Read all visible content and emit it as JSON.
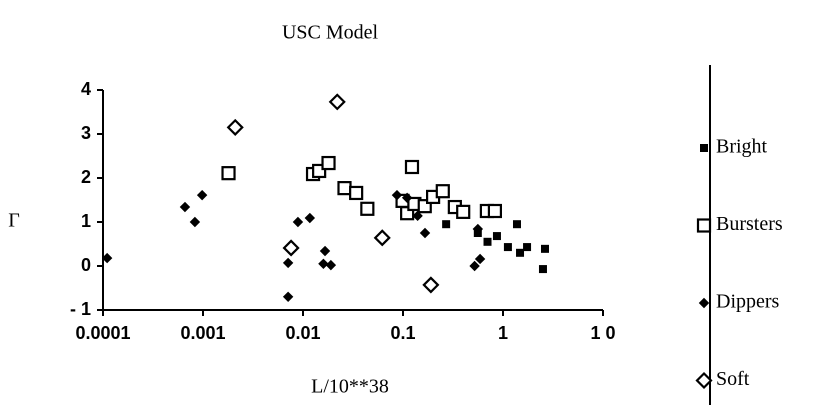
{
  "chart_data": {
    "type": "scatter",
    "title": "USC Model",
    "x_label": "L/10**38",
    "y_label": "Γ",
    "log_x": true,
    "xlim": [
      0.0001,
      10
    ],
    "ylim": [
      -1,
      4
    ],
    "xticks": [
      0.0001,
      0.001,
      0.01,
      0.1,
      1,
      {
        "value": 10,
        "label": "1 0"
      }
    ],
    "yticks": [
      {
        "value": -1,
        "label": "- 1"
      },
      0,
      1,
      2,
      3,
      4
    ],
    "series": [
      {
        "name": "Bright",
        "marker": "filled-square",
        "color": "#000000",
        "x": [
          0.27,
          0.56,
          0.7,
          0.87,
          1.12,
          1.38,
          1.48,
          1.74,
          2.63,
          2.51
        ],
        "values": [
          0.95,
          0.75,
          0.55,
          0.68,
          0.43,
          0.95,
          0.3,
          0.43,
          0.39,
          -0.07
        ]
      },
      {
        "name": "Bursters",
        "marker": "open-square",
        "color": "#000000",
        "x": [
          0.0018,
          0.0126,
          0.0145,
          0.018,
          0.026,
          0.034,
          0.044,
          0.123,
          0.099,
          0.11,
          0.13,
          0.165,
          0.2,
          0.25,
          0.33,
          0.4,
          0.69,
          0.83
        ],
        "values": [
          2.11,
          2.09,
          2.16,
          2.34,
          1.77,
          1.66,
          1.3,
          2.25,
          1.48,
          1.2,
          1.41,
          1.36,
          1.57,
          1.7,
          1.34,
          1.23,
          1.25,
          1.25
        ]
      },
      {
        "name": "Dippers",
        "marker": "filled-diamond",
        "color": "#000000",
        "x": [
          0.00011,
          0.00066,
          0.00083,
          0.00098,
          0.0071,
          0.0071,
          0.0089,
          0.0117,
          0.0166,
          0.016,
          0.019,
          0.087,
          0.11,
          0.14,
          0.166,
          0.52,
          0.59,
          0.56
        ],
        "values": [
          0.18,
          1.34,
          1.0,
          1.61,
          0.07,
          -0.7,
          1.0,
          1.09,
          0.34,
          0.05,
          0.02,
          1.61,
          1.55,
          1.14,
          0.75,
          0.0,
          0.16,
          0.84
        ]
      },
      {
        "name": "Soft",
        "marker": "open-diamond",
        "color": "#000000",
        "x": [
          0.0021,
          0.022,
          0.0076,
          0.062,
          0.19
        ],
        "values": [
          3.15,
          3.73,
          0.41,
          0.64,
          -0.43
        ]
      }
    ]
  }
}
